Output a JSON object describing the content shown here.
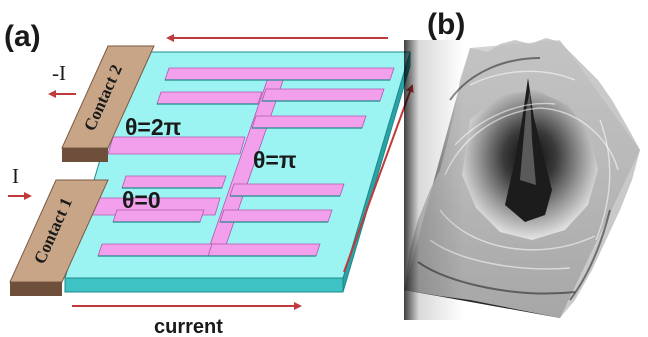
{
  "panels": {
    "a_label": "(a)",
    "b_label": "(b)"
  },
  "contacts": {
    "contact1": "Contact  1",
    "contact2": "Contact  2"
  },
  "currents": {
    "plus": "I",
    "minus": "-I",
    "current_label": "current"
  },
  "phases": {
    "zero": "θ=0",
    "pi": "θ=π",
    "two_pi": "θ=2π"
  },
  "colors": {
    "platform_top": "#9cf4f2",
    "platform_side": "#3fc2c4",
    "conductor": "#f2a0ec",
    "conductor_dark": "#c464c0",
    "contact_top": "#c9a588",
    "contact_side": "#7a5a44",
    "arrow": "#c0393b"
  }
}
